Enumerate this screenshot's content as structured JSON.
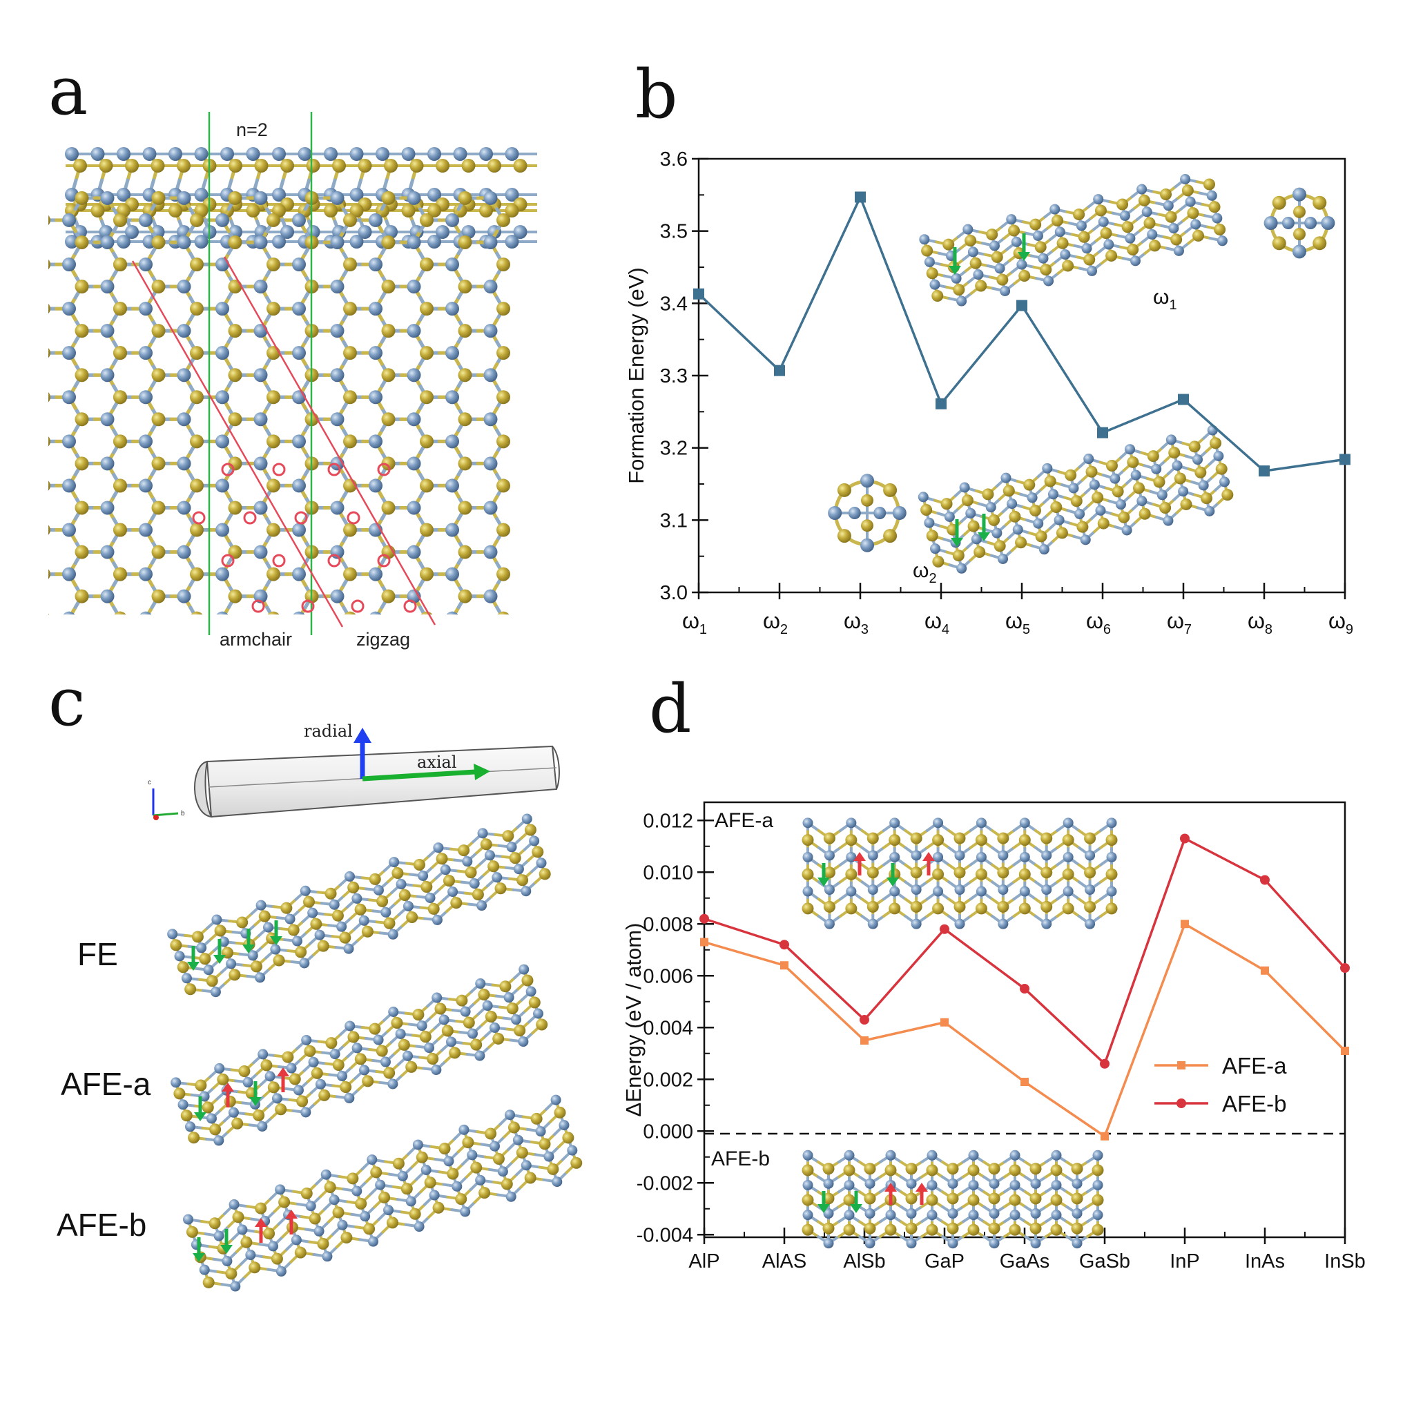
{
  "colors": {
    "atom_blue": "#5f82ad",
    "atom_gold": "#b59f2e",
    "bond_blue": "#8eaac6",
    "bond_gold": "#c9b74d",
    "green_arrow": "#19b04a",
    "red_arrow": "#e6393f",
    "green_line": "#2fb44a",
    "red_line": "#e64a5a",
    "chart_b": "#3e7190",
    "afe_a": "#f38c4e",
    "afe_b": "#d8343e"
  },
  "panel_a": {
    "letter": "a",
    "n_label": "n=2",
    "armchair_label": "armchair",
    "zigzag_label": "zigzag"
  },
  "panel_b": {
    "letter": "b",
    "inset_omega1_label": "ω",
    "inset_omega1_sub": "1",
    "inset_omega2_label": "ω",
    "inset_omega2_sub": "2"
  },
  "panel_c": {
    "letter": "c",
    "radial_label": "radial",
    "axial_label": "axial",
    "axis_c": "c",
    "axis_b": "b",
    "fe_label": "FE",
    "afe_a_label": "AFE-a",
    "afe_b_label": "AFE-b"
  },
  "panel_d": {
    "letter": "d",
    "inset_top_label": "AFE-a",
    "inset_bottom_label": "AFE-b"
  },
  "chart_data": [
    {
      "type": "line",
      "panel": "b",
      "categories": [
        "ω1",
        "ω2",
        "ω3",
        "ω4",
        "ω5",
        "ω6",
        "ω7",
        "ω8",
        "ω9"
      ],
      "category_symbol": "ω",
      "category_subscripts": [
        "1",
        "2",
        "3",
        "4",
        "5",
        "6",
        "7",
        "8",
        "9"
      ],
      "series": [
        {
          "values": [
            3.413,
            3.307,
            3.547,
            3.261,
            3.397,
            3.221,
            3.267,
            3.168,
            3.184
          ],
          "color": "#3e7190",
          "marker": "square"
        }
      ],
      "ylabel": "Formation Energy (eV)",
      "ylim": [
        3.0,
        3.6
      ],
      "yticks": [
        "3.0",
        "3.1",
        "3.2",
        "3.3",
        "3.4",
        "3.5",
        "3.6"
      ],
      "grid": false
    },
    {
      "type": "line",
      "panel": "d",
      "categories": [
        "AlP",
        "AlAS",
        "AlSb",
        "GaP",
        "GaAs",
        "GaSb",
        "InP",
        "InAs",
        "InSb"
      ],
      "series": [
        {
          "name": "AFE-a",
          "values": [
            0.0073,
            0.0064,
            0.0035,
            0.0042,
            0.0019,
            -0.0002,
            0.008,
            0.0062,
            0.0031
          ],
          "color": "#f38c4e",
          "marker": "square"
        },
        {
          "name": "AFE-b",
          "values": [
            0.0082,
            0.0072,
            0.0043,
            0.0078,
            0.0055,
            0.0026,
            0.0113,
            0.0097,
            0.0063
          ],
          "color": "#d8343e",
          "marker": "circle"
        }
      ],
      "ylabel": "ΔEnergy (eV / atom)",
      "ylim": [
        -0.0041,
        0.0127
      ],
      "yticks": [
        "-0.004",
        "-0.002",
        "0.000",
        "0.002",
        "0.004",
        "0.006",
        "0.008",
        "0.010",
        "0.012"
      ],
      "reference_line": -0.0001,
      "legend_position": "right",
      "grid": false
    }
  ]
}
